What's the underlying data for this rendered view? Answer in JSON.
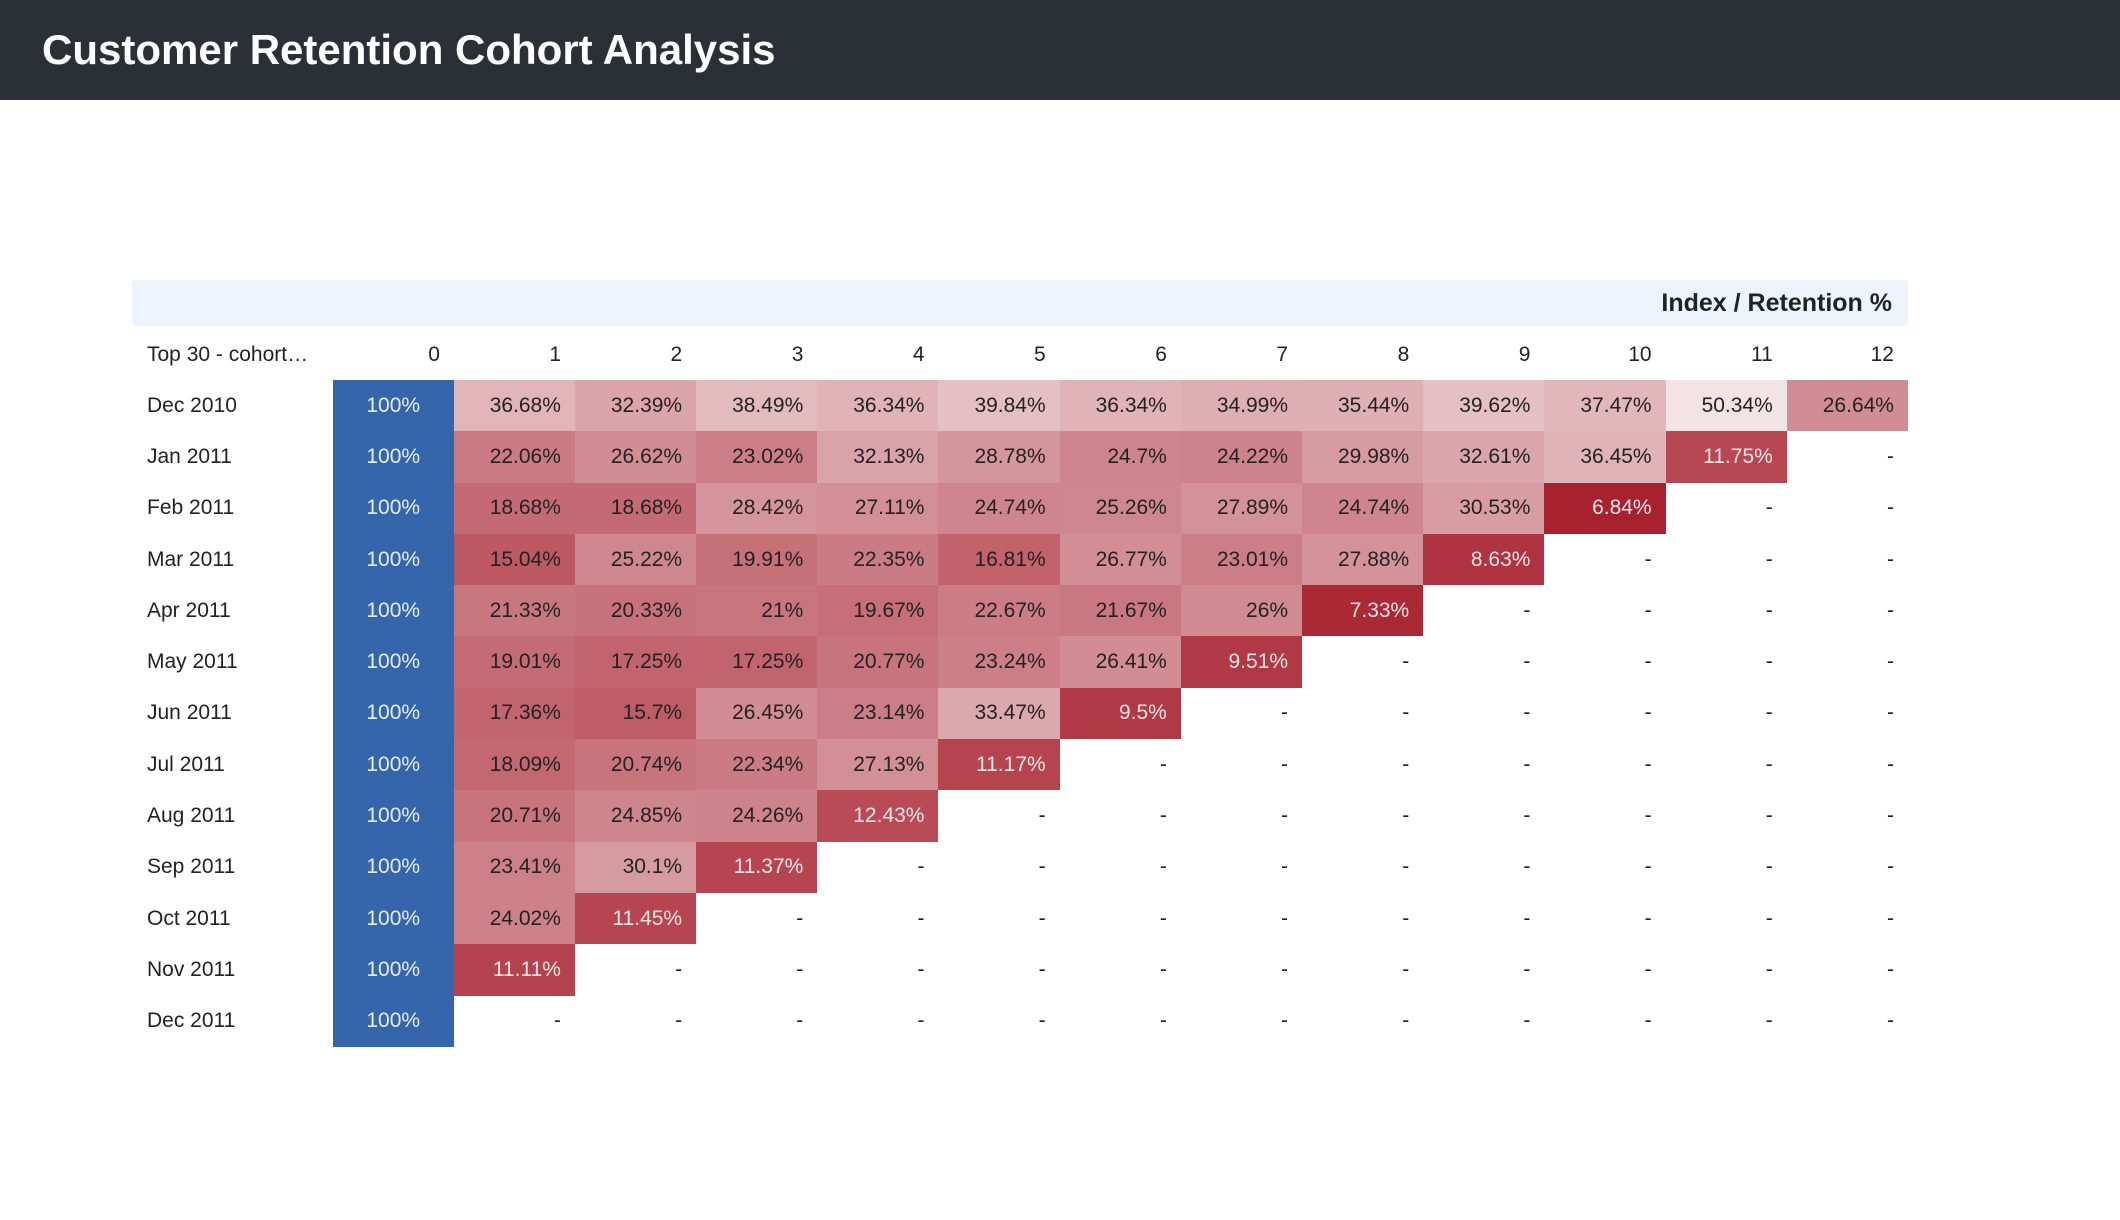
{
  "header": {
    "title": "Customer Retention Cohort Analysis"
  },
  "colors": {
    "header_bg": "#2b3036",
    "index_zero": "#3565ab",
    "low_retention": "#a8212f",
    "high_retention": "#f2e4e6"
  },
  "chart_data": {
    "type": "heatmap",
    "title": "Index / Retention %",
    "row_header": "Top 30 - cohort…",
    "columns": [
      "0",
      "1",
      "2",
      "3",
      "4",
      "5",
      "6",
      "7",
      "8",
      "9",
      "10",
      "11",
      "12"
    ],
    "rows": [
      {
        "label": "Dec 2010",
        "cells": [
          "100%",
          "36.68%",
          "32.39%",
          "38.49%",
          "36.34%",
          "39.84%",
          "36.34%",
          "34.99%",
          "35.44%",
          "39.62%",
          "37.47%",
          "50.34%",
          "26.64%"
        ]
      },
      {
        "label": "Jan 2011",
        "cells": [
          "100%",
          "22.06%",
          "26.62%",
          "23.02%",
          "32.13%",
          "28.78%",
          "24.7%",
          "24.22%",
          "29.98%",
          "32.61%",
          "36.45%",
          "11.75%",
          "-"
        ]
      },
      {
        "label": "Feb 2011",
        "cells": [
          "100%",
          "18.68%",
          "18.68%",
          "28.42%",
          "27.11%",
          "24.74%",
          "25.26%",
          "27.89%",
          "24.74%",
          "30.53%",
          "6.84%",
          "-",
          "-"
        ]
      },
      {
        "label": "Mar 2011",
        "cells": [
          "100%",
          "15.04%",
          "25.22%",
          "19.91%",
          "22.35%",
          "16.81%",
          "26.77%",
          "23.01%",
          "27.88%",
          "8.63%",
          "-",
          "-",
          "-"
        ]
      },
      {
        "label": "Apr 2011",
        "cells": [
          "100%",
          "21.33%",
          "20.33%",
          "21%",
          "19.67%",
          "22.67%",
          "21.67%",
          "26%",
          "7.33%",
          "-",
          "-",
          "-",
          "-"
        ]
      },
      {
        "label": "May 2011",
        "cells": [
          "100%",
          "19.01%",
          "17.25%",
          "17.25%",
          "20.77%",
          "23.24%",
          "26.41%",
          "9.51%",
          "-",
          "-",
          "-",
          "-",
          "-"
        ]
      },
      {
        "label": "Jun 2011",
        "cells": [
          "100%",
          "17.36%",
          "15.7%",
          "26.45%",
          "23.14%",
          "33.47%",
          "9.5%",
          "-",
          "-",
          "-",
          "-",
          "-",
          "-"
        ]
      },
      {
        "label": "Jul 2011",
        "cells": [
          "100%",
          "18.09%",
          "20.74%",
          "22.34%",
          "27.13%",
          "11.17%",
          "-",
          "-",
          "-",
          "-",
          "-",
          "-",
          "-"
        ]
      },
      {
        "label": "Aug 2011",
        "cells": [
          "100%",
          "20.71%",
          "24.85%",
          "24.26%",
          "12.43%",
          "-",
          "-",
          "-",
          "-",
          "-",
          "-",
          "-",
          "-"
        ]
      },
      {
        "label": "Sep 2011",
        "cells": [
          "100%",
          "23.41%",
          "30.1%",
          "11.37%",
          "-",
          "-",
          "-",
          "-",
          "-",
          "-",
          "-",
          "-",
          "-"
        ]
      },
      {
        "label": "Oct 2011",
        "cells": [
          "100%",
          "24.02%",
          "11.45%",
          "-",
          "-",
          "-",
          "-",
          "-",
          "-",
          "-",
          "-",
          "-",
          "-"
        ]
      },
      {
        "label": "Nov 2011",
        "cells": [
          "100%",
          "11.11%",
          "-",
          "-",
          "-",
          "-",
          "-",
          "-",
          "-",
          "-",
          "-",
          "-",
          "-"
        ]
      },
      {
        "label": "Dec 2011",
        "cells": [
          "100%",
          "-",
          "-",
          "-",
          "-",
          "-",
          "-",
          "-",
          "-",
          "-",
          "-",
          "-",
          "-"
        ]
      }
    ]
  }
}
